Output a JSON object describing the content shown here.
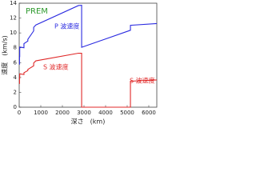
{
  "chart_data": {
    "type": "line",
    "title": "PREM",
    "xlabel": "深さ　(km)",
    "ylabel": "速度　(km/s)",
    "annotations": [
      "P 波速度",
      "S 波速度",
      "S 波速度"
    ],
    "series": [
      {
        "name": "P 波速度",
        "color": "#2a2ae0",
        "x": [
          0,
          15,
          15,
          24,
          24,
          220,
          220,
          400,
          400,
          670,
          670,
          771,
          2741,
          2891,
          2891,
          5150,
          5150,
          6371
        ],
        "values": [
          5.8,
          5.8,
          6.8,
          6.8,
          8.1,
          8.0,
          8.56,
          8.9,
          9.13,
          10.27,
          10.75,
          11.07,
          13.68,
          13.72,
          8.06,
          10.36,
          11.03,
          11.26
        ]
      },
      {
        "name": "S 波速度",
        "color": "#e02828",
        "x": [
          0,
          15,
          15,
          24,
          24,
          220,
          220,
          400,
          400,
          670,
          670,
          771,
          2741,
          2891,
          2891,
          5150,
          5150,
          6371
        ],
        "values": [
          3.2,
          3.2,
          3.9,
          3.9,
          4.49,
          4.4,
          4.64,
          4.93,
          5.08,
          5.57,
          5.95,
          6.24,
          7.27,
          7.26,
          0,
          0,
          3.5,
          3.67
        ]
      }
    ],
    "xlim": [
      0,
      6371
    ],
    "xticks": [
      0,
      1000,
      2000,
      3000,
      4000,
      5000,
      6000
    ],
    "ylim": [
      0,
      14
    ],
    "yticks": [
      0,
      2,
      4,
      6,
      8,
      10,
      12,
      14
    ],
    "grid": false
  }
}
